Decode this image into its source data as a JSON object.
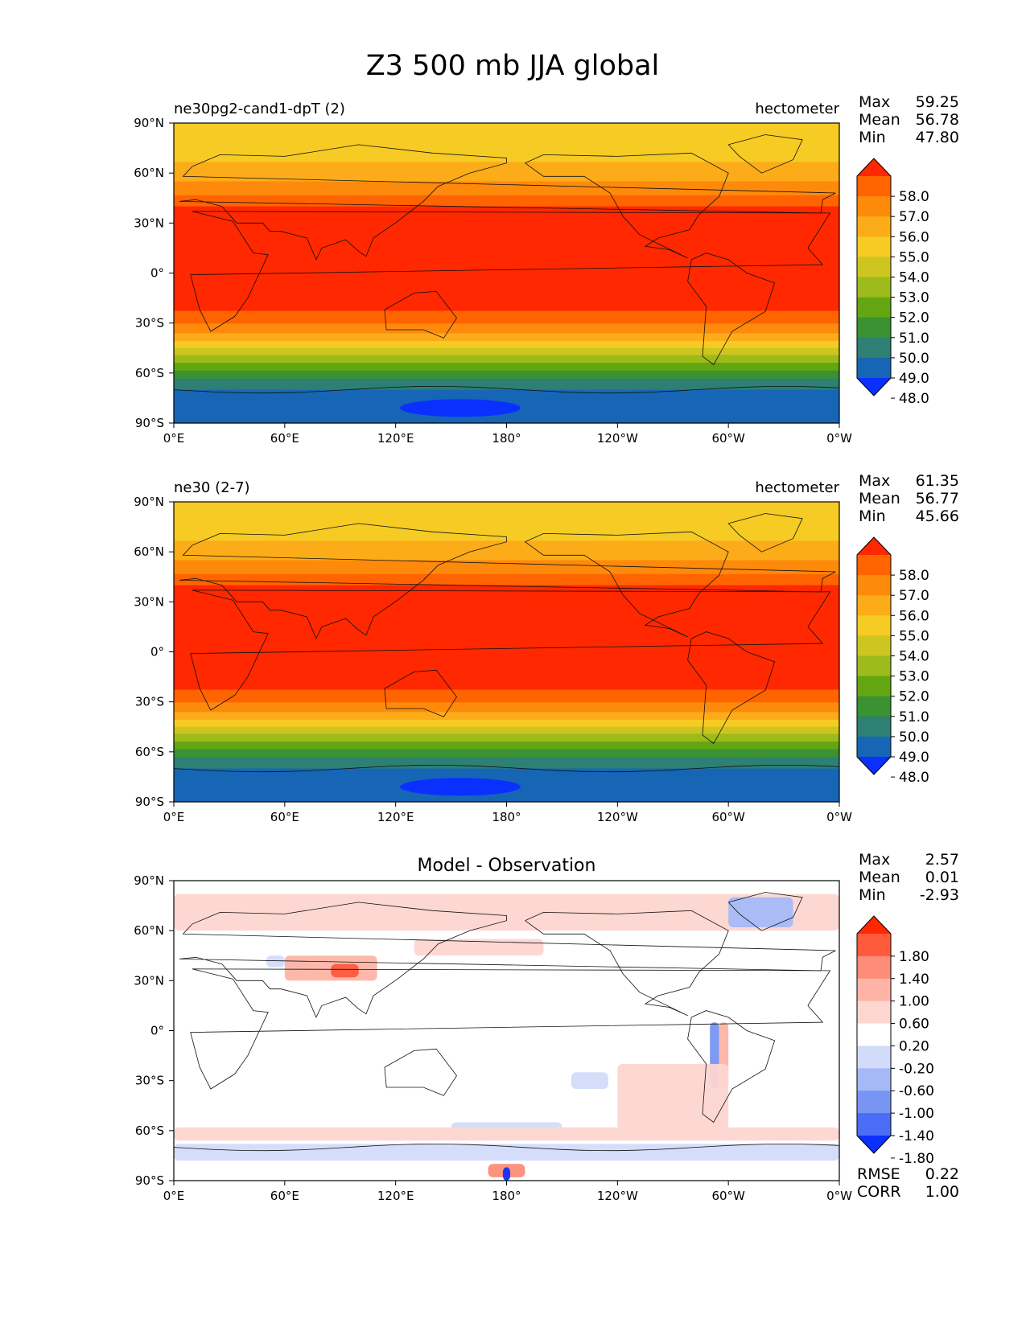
{
  "title": "Z3 500 mb JJA global",
  "lat_ticks": [
    "90°N",
    "60°N",
    "30°N",
    "0°",
    "30°S",
    "60°S",
    "90°S"
  ],
  "lon_ticks": [
    "0°E",
    "60°E",
    "120°E",
    "180°",
    "120°W",
    "60°W",
    "0°W"
  ],
  "chart_data": [
    {
      "type": "heatmap",
      "title": "",
      "left_title": "ne30pg2-cand1-dpT (2)",
      "right_title": "hectometer",
      "stats": {
        "max_label": "Max",
        "max": "59.25",
        "mean_label": "Mean",
        "mean": "56.78",
        "min_label": "Min",
        "min": "47.80"
      },
      "xlim": [
        0,
        360
      ],
      "ylim": [
        -90,
        90
      ],
      "colorbar": {
        "levels": [
          "58.0",
          "57.0",
          "56.0",
          "55.0",
          "54.0",
          "53.0",
          "52.0",
          "51.0",
          "50.0",
          "49.0",
          "48.0"
        ],
        "colors": [
          "#ff2800",
          "#ff6400",
          "#fe8a0c",
          "#fcac18",
          "#f6cb24",
          "#cdc520",
          "#9dbb1a",
          "#63a611",
          "#3a9233",
          "#2d8073",
          "#1766b6",
          "#0a30ff"
        ]
      },
      "zonal_bands": [
        {
          "lat": 90,
          "value": 54.3
        },
        {
          "lat": 70,
          "value": 54.8
        },
        {
          "lat": 60,
          "value": 55.4
        },
        {
          "lat": 50,
          "value": 56.6
        },
        {
          "lat": 40,
          "value": 58.0
        },
        {
          "lat": 30,
          "value": 58.6
        },
        {
          "lat": 0,
          "value": 58.6
        },
        {
          "lat": -20,
          "value": 58.4
        },
        {
          "lat": -28,
          "value": 57.4
        },
        {
          "lat": -35,
          "value": 56.2
        },
        {
          "lat": -42,
          "value": 54.8
        },
        {
          "lat": -48,
          "value": 53.3
        },
        {
          "lat": -55,
          "value": 51.8
        },
        {
          "lat": -62,
          "value": 50.2
        },
        {
          "lat": -70,
          "value": 49.0
        },
        {
          "lat": -90,
          "value": 48.6
        }
      ]
    },
    {
      "type": "heatmap",
      "title": "",
      "left_title": "ne30 (2-7)",
      "right_title": "hectometer",
      "stats": {
        "max_label": "Max",
        "max": "61.35",
        "mean_label": "Mean",
        "mean": "56.77",
        "min_label": "Min",
        "min": "45.66"
      },
      "xlim": [
        0,
        360
      ],
      "ylim": [
        -90,
        90
      ],
      "colorbar": {
        "levels": [
          "58.0",
          "57.0",
          "56.0",
          "55.0",
          "54.0",
          "53.0",
          "52.0",
          "51.0",
          "50.0",
          "49.0",
          "48.0"
        ],
        "colors": [
          "#ff2800",
          "#ff6400",
          "#fe8a0c",
          "#fcac18",
          "#f6cb24",
          "#cdc520",
          "#9dbb1a",
          "#63a611",
          "#3a9233",
          "#2d8073",
          "#1766b6",
          "#0a30ff"
        ]
      },
      "zonal_bands": [
        {
          "lat": 90,
          "value": 54.3
        },
        {
          "lat": 70,
          "value": 54.8
        },
        {
          "lat": 60,
          "value": 55.5
        },
        {
          "lat": 50,
          "value": 56.6
        },
        {
          "lat": 40,
          "value": 58.0
        },
        {
          "lat": 30,
          "value": 58.6
        },
        {
          "lat": 0,
          "value": 58.6
        },
        {
          "lat": -20,
          "value": 58.4
        },
        {
          "lat": -28,
          "value": 57.4
        },
        {
          "lat": -35,
          "value": 56.2
        },
        {
          "lat": -42,
          "value": 54.8
        },
        {
          "lat": -48,
          "value": 53.3
        },
        {
          "lat": -55,
          "value": 51.8
        },
        {
          "lat": -62,
          "value": 50.2
        },
        {
          "lat": -70,
          "value": 49.0
        },
        {
          "lat": -90,
          "value": 48.6
        }
      ]
    },
    {
      "type": "heatmap",
      "title": "Model - Observation",
      "left_title": "",
      "right_title": "",
      "stats": {
        "max_label": "Max",
        "max": "2.57",
        "mean_label": "Mean",
        "mean": "0.01",
        "min_label": "Min",
        "min": "-2.93"
      },
      "extra_stats": {
        "rmse_label": "RMSE",
        "rmse": "0.22",
        "corr_label": "CORR",
        "corr": "1.00"
      },
      "xlim": [
        0,
        360
      ],
      "ylim": [
        -90,
        90
      ],
      "colorbar": {
        "levels": [
          "1.80",
          "1.40",
          "1.00",
          "0.60",
          "0.20",
          "-0.20",
          "-0.60",
          "-1.00",
          "-1.40",
          "-1.80"
        ],
        "colors": [
          "#ff2800",
          "#fe5a3c",
          "#fd8c78",
          "#fdb4a6",
          "#fdd6d0",
          "#ffffff",
          "#d2dcfa",
          "#a5b9f7",
          "#7895f4",
          "#4b6cf5",
          "#0a30ff"
        ]
      },
      "anomalies": [
        {
          "lon": 0,
          "lat": 82,
          "lon2": 360,
          "lat2": 60,
          "value": 0.3
        },
        {
          "lon": 130,
          "lat": 55,
          "lon2": 200,
          "lat2": 45,
          "value": 0.3
        },
        {
          "lon": 60,
          "lat": 45,
          "lon2": 110,
          "lat2": 30,
          "value": 0.8
        },
        {
          "lon": 85,
          "lat": 40,
          "lon2": 100,
          "lat2": 32,
          "value": 1.4
        },
        {
          "lon": 300,
          "lat": 80,
          "lon2": 335,
          "lat2": 62,
          "value": -0.7
        },
        {
          "lon": 50,
          "lat": 45,
          "lon2": 60,
          "lat2": 38,
          "value": -0.5
        },
        {
          "lon": 290,
          "lat": 5,
          "lon2": 295,
          "lat2": -35,
          "value": -1.2
        },
        {
          "lon": 295,
          "lat": 5,
          "lon2": 300,
          "lat2": -35,
          "value": 0.7
        },
        {
          "lon": 215,
          "lat": -25,
          "lon2": 235,
          "lat2": -35,
          "value": -0.5
        },
        {
          "lon": 240,
          "lat": -20,
          "lon2": 300,
          "lat2": -60,
          "value": 0.3
        },
        {
          "lon": 150,
          "lat": -55,
          "lon2": 210,
          "lat2": -65,
          "value": -0.5
        },
        {
          "lon": 0,
          "lat": -58,
          "lon2": 360,
          "lat2": -66,
          "value": 0.3
        },
        {
          "lon": 0,
          "lat": -68,
          "lon2": 360,
          "lat2": -78,
          "value": -0.6
        },
        {
          "lon": 170,
          "lat": -80,
          "lon2": 190,
          "lat2": -88,
          "value": 1.2
        },
        {
          "lon": 178,
          "lat": -82,
          "lon2": 182,
          "lat2": -90,
          "value": -2.0
        }
      ]
    }
  ]
}
